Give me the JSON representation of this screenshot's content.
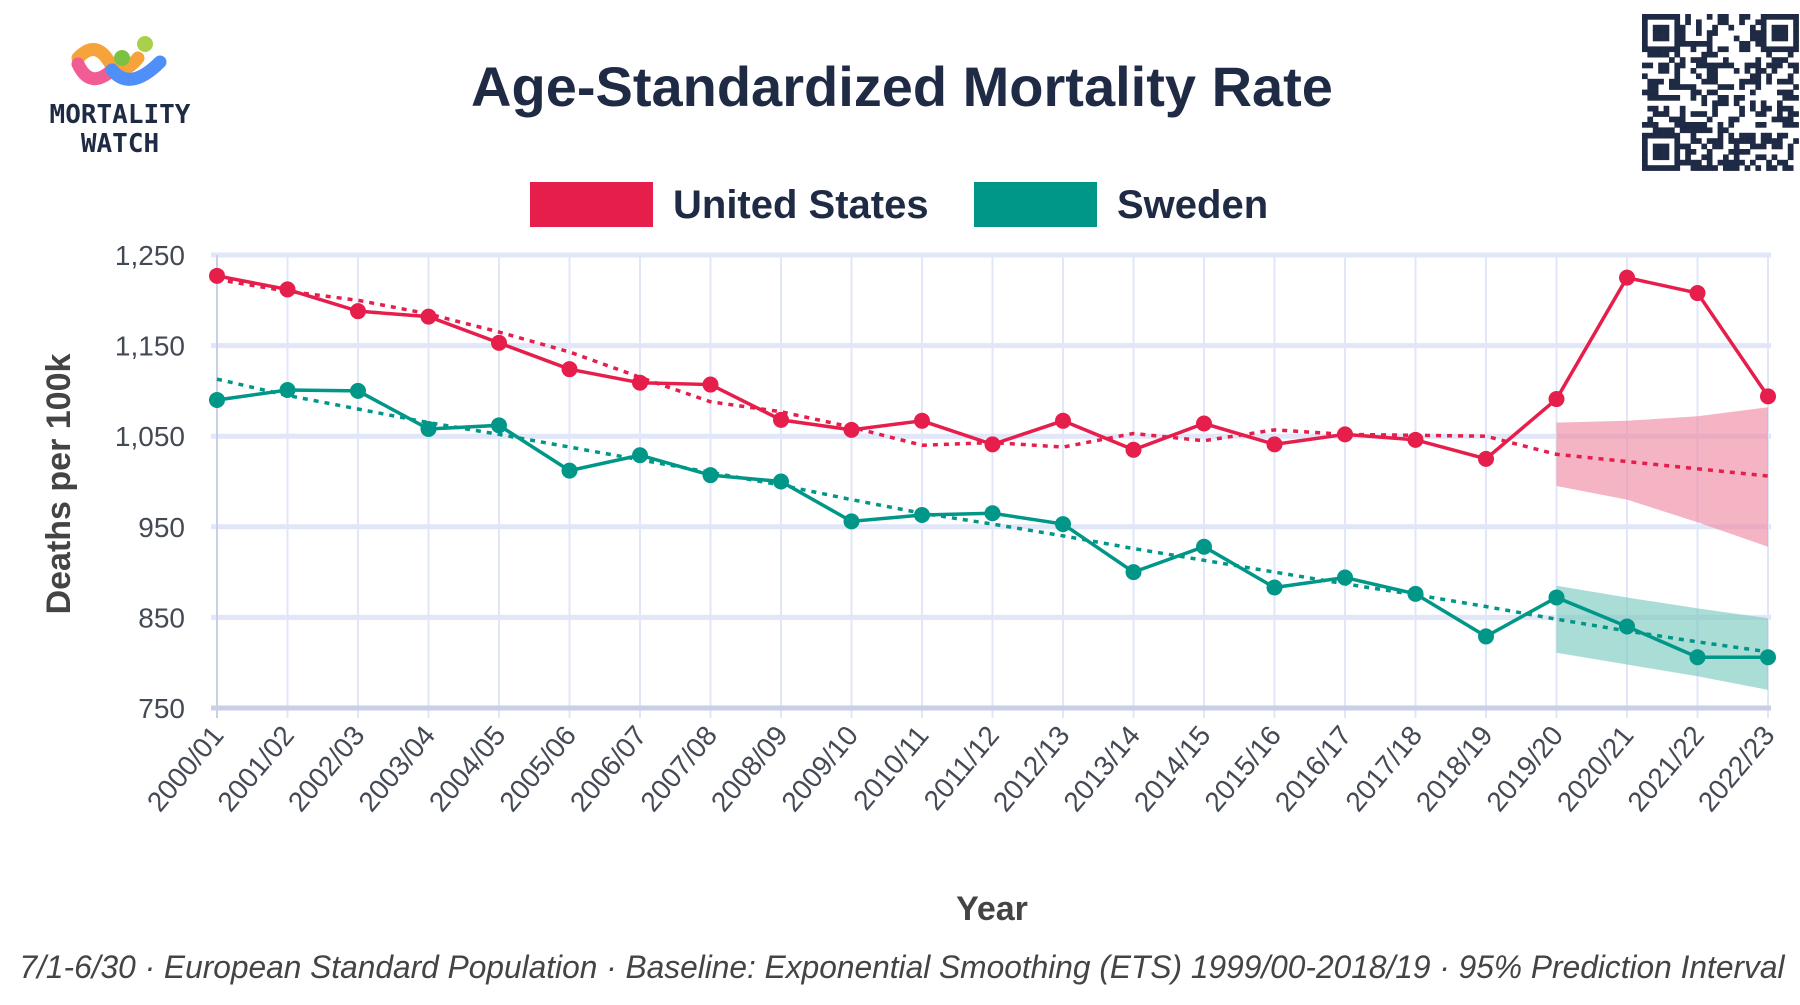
{
  "logo": {
    "line1": "MORTALITY",
    "line2": "WATCH"
  },
  "colors": {
    "us": "#e61e4b",
    "sweden": "#009688",
    "us_band": "#f08ca5",
    "sweden_band": "#7ccbbf",
    "grid": "#e1e6f8",
    "text": "#1f2a44"
  },
  "chart_data": {
    "type": "line",
    "title": "Age-Standardized Mortality Rate",
    "xlabel": "Year",
    "ylabel": "Deaths per 100k",
    "ylim": [
      750,
      1250
    ],
    "yticks": [
      750,
      850,
      950,
      1050,
      1150,
      1250
    ],
    "ytick_labels": [
      "750",
      "850",
      "950",
      "1,050",
      "1,150",
      "1,250"
    ],
    "legend_placement": "top-center",
    "grid": true,
    "categories": [
      "2000/01",
      "2001/02",
      "2002/03",
      "2003/04",
      "2004/05",
      "2005/06",
      "2006/07",
      "2007/08",
      "2008/09",
      "2009/10",
      "2010/11",
      "2011/12",
      "2012/13",
      "2013/14",
      "2014/15",
      "2015/16",
      "2016/17",
      "2017/18",
      "2018/19",
      "2019/20",
      "2020/21",
      "2021/22",
      "2022/23"
    ],
    "series": [
      {
        "name": "United States",
        "color_key": "us",
        "values": [
          1227,
          1212,
          1188,
          1182,
          1153,
          1124,
          1109,
          1107,
          1068,
          1057,
          1067,
          1041,
          1067,
          1035,
          1064,
          1041,
          1052,
          1046,
          1025,
          1091,
          1225,
          1208,
          1094
        ],
        "baseline": [
          1223,
          1210,
          1200,
          1185,
          1165,
          1143,
          1115,
          1088,
          1077,
          1060,
          1040,
          1043,
          1038,
          1053,
          1045,
          1057,
          1052,
          1051,
          1050,
          1030,
          1022,
          1014,
          1006
        ],
        "pi_start_index": 19,
        "pi_lower": [
          995,
          980,
          955,
          928
        ],
        "pi_upper": [
          1065,
          1067,
          1072,
          1082
        ]
      },
      {
        "name": "Sweden",
        "color_key": "sweden",
        "values": [
          1090,
          1101,
          1100,
          1058,
          1062,
          1012,
          1029,
          1007,
          1000,
          956,
          963,
          965,
          953,
          900,
          928,
          883,
          894,
          876,
          829,
          872,
          840,
          806,
          806
        ],
        "baseline": [
          1113,
          1095,
          1080,
          1065,
          1052,
          1038,
          1024,
          1010,
          996,
          980,
          965,
          953,
          940,
          926,
          913,
          900,
          887,
          875,
          862,
          848,
          835,
          823,
          812
        ],
        "pi_start_index": 19,
        "pi_lower": [
          811,
          798,
          785,
          770
        ],
        "pi_upper": [
          885,
          872,
          860,
          849
        ]
      }
    ],
    "footnote": "7/1-6/30 · European Standard Population · Baseline: Exponential Smoothing (ETS) 1999/00-2018/19 · 95% Prediction Interval"
  }
}
